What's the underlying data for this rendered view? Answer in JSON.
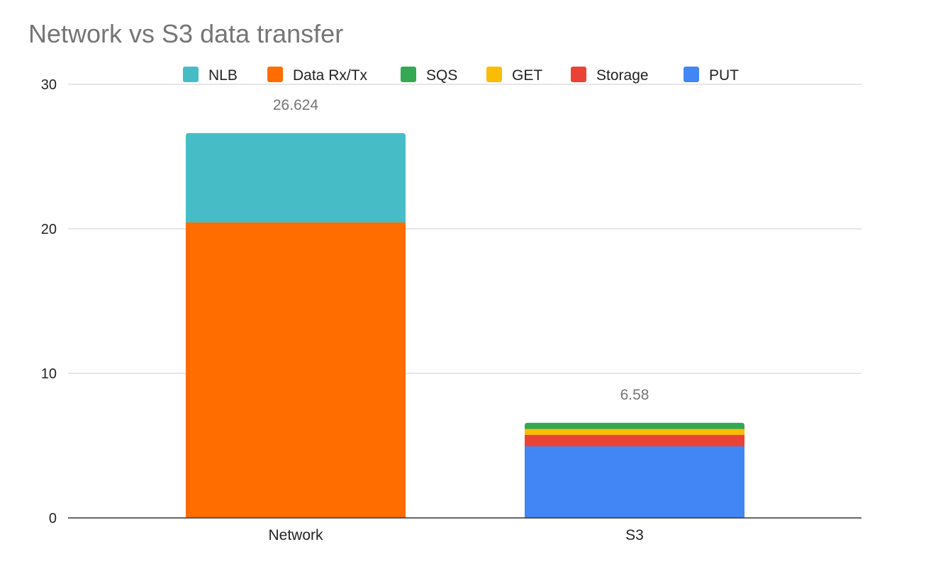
{
  "chart_data": {
    "type": "bar",
    "stacked": true,
    "title": "Network vs S3 data transfer",
    "xlabel": "",
    "ylabel": "",
    "categories": [
      "Network",
      "S3"
    ],
    "ylim": [
      0,
      30
    ],
    "yticks": [
      0,
      10,
      20,
      30
    ],
    "grid": true,
    "legend_position": "top",
    "series": [
      {
        "name": "PUT",
        "color": "#4285F4",
        "values": [
          0,
          4.95
        ]
      },
      {
        "name": "Storage",
        "color": "#EA4335",
        "values": [
          0,
          0.8
        ]
      },
      {
        "name": "GET",
        "color": "#FBBC04",
        "values": [
          0,
          0.4
        ]
      },
      {
        "name": "SQS",
        "color": "#34A853",
        "values": [
          0,
          0.43
        ]
      },
      {
        "name": "Data Rx/Tx",
        "color": "#FF6D01",
        "values": [
          20.44,
          0
        ]
      },
      {
        "name": "NLB",
        "color": "#46BDC6",
        "values": [
          6.184,
          0
        ]
      }
    ],
    "legend_order": [
      "NLB",
      "Data Rx/Tx",
      "SQS",
      "GET",
      "Storage",
      "PUT"
    ],
    "totals": [
      "26.624",
      "6.58"
    ]
  }
}
